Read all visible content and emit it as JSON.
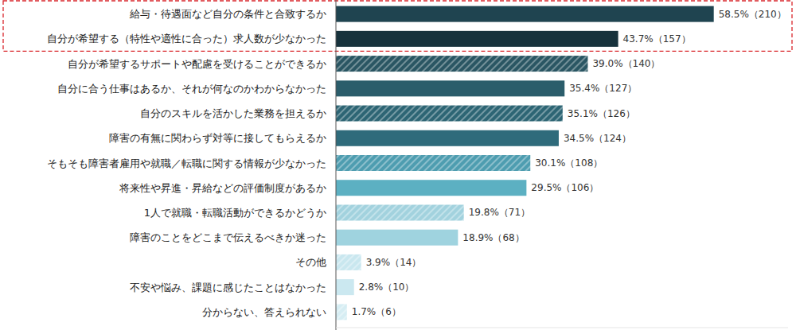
{
  "chart_data": {
    "type": "bar",
    "orientation": "horizontal",
    "categories": [
      "給与・待遇面など自分の条件と合致するか",
      "自分が希望する（特性や適性に合った）求人数が少なかった",
      "自分が希望するサポートや配慮を受けることができるか",
      "自分に合う仕事はあるか、それが何なのかわからなかった",
      "自分のスキルを活かした業務を担えるか",
      "障害の有無に関わらず対等に接してもらえるか",
      "そもそも障害者雇用や就職／転職に関する情報が少なかった",
      "将来性や昇進・昇給などの評価制度があるか",
      "1人で就職・転職活動ができるかどうか",
      "障害のことをどこまで伝えるべきか迷った",
      "その他",
      "不安や悩み、課題に感じたことはなかった",
      "分からない、答えられない"
    ],
    "values": [
      58.5,
      43.7,
      39.0,
      35.4,
      35.1,
      34.5,
      30.1,
      29.5,
      19.8,
      18.9,
      3.9,
      2.8,
      1.7
    ],
    "value_labels": [
      "58.5%（210）",
      "43.7%（157）",
      "39.0%（140）",
      "35.4%（127）",
      "35.1%（126）",
      "34.5%（124）",
      "30.1%（108）",
      "29.5%（106）",
      "19.8%（71）",
      "18.9%（68）",
      "3.9%（14）",
      "2.8%（10）",
      "1.7%（6）"
    ],
    "colors": [
      "#1f4450",
      "#17323c",
      "#2a5663",
      "#2b5d6b",
      "#2d6574",
      "#2f6b7b",
      "#4e9db0",
      "#5cb0c2",
      "#a2d2de",
      "#9fd3df",
      "#c9e7ef",
      "#cbe8f0",
      "#d6edf3"
    ],
    "xlim": [
      0,
      70
    ],
    "data_labels": true,
    "tick_labels": false,
    "grid": false
  }
}
